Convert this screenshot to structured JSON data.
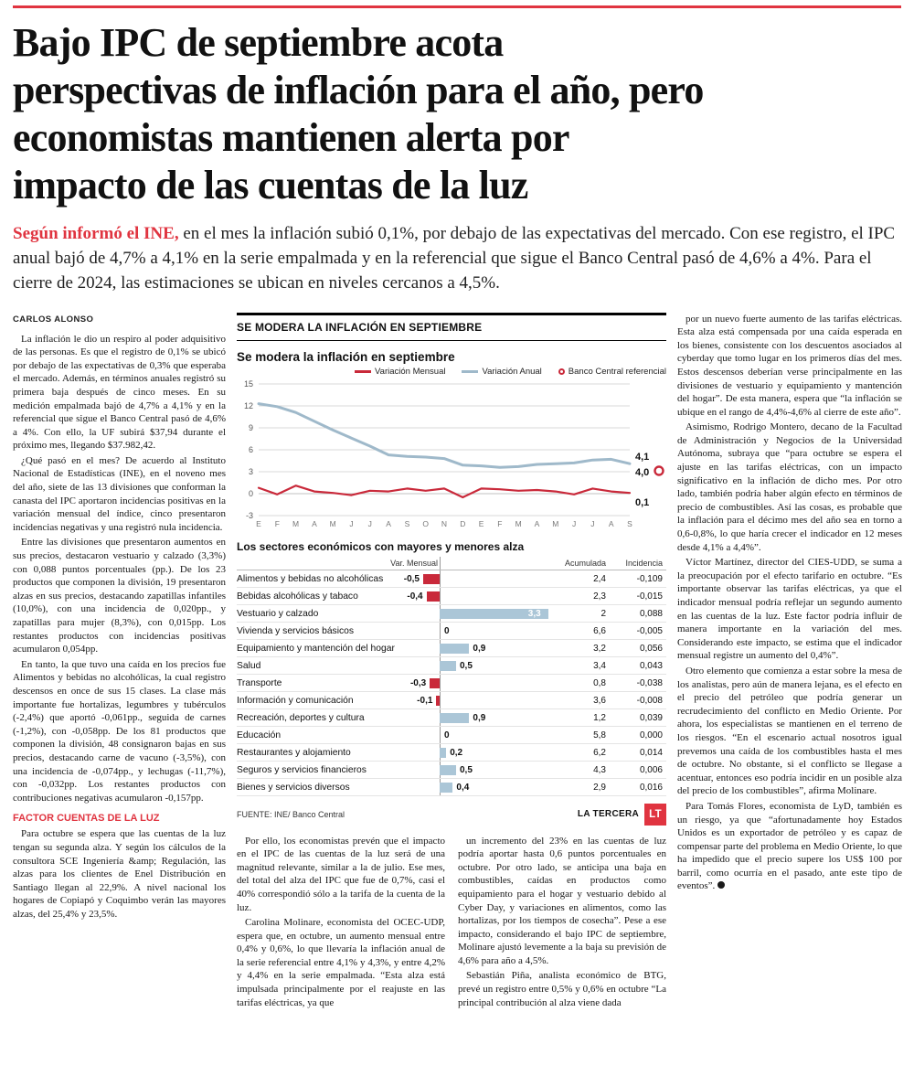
{
  "colors": {
    "accent": "#e03440",
    "chart_red": "#c9293a",
    "chart_blue": "#9fb9ca",
    "bar_blue": "#abc6d7",
    "grid": "#d9d9d9"
  },
  "page": {
    "headline": "Bajo IPC de septiembre acota\nperspectivas de inflación para el año, pero\neconomistas mantienen alerta por\nimpacto de las cuentas de la luz",
    "lede_lead": "Según informó el INE,",
    "lede_rest": " en el mes la inflación subió 0,1%, por debajo de las expectativas del mercado. Con ese registro, el IPC anual bajó de 4,7% a 4,1% en la serie empalmada y en la referencial que sigue el Banco Central pasó de 4,6% a 4%. Para el cierre de 2024, las estimaciones se ubican en niveles cercanos a 4,5%.",
    "byline": "CARLOS ALONSO"
  },
  "article": {
    "col1": [
      "La inflación le dio un respiro al poder adquisitivo de las personas. Es que el registro de 0,1% se ubicó por debajo de las expectativas de 0,3% que esperaba el mercado. Además, en términos anuales registró su primera baja después de cinco meses. En su medición empalmada bajó de 4,7% a 4,1% y en la referencial que sigue el Banco Central pasó de 4,6% a 4%. Con ello, la UF subirá $37,94 durante el próximo mes, llegando $37.982,42.",
      "¿Qué pasó en el mes? De acuerdo al Instituto Nacional de Estadísticas (INE), en el noveno mes del año, siete de las 13 divisiones que conforman la canasta del IPC aportaron incidencias positivas en la variación mensual del índice, cinco presentaron incidencias negativas y una registró nula incidencia.",
      "Entre las divisiones que presentaron aumentos en sus precios, destacaron vestuario y calzado (3,3%) con 0,088 puntos porcentuales (pp.). De los 23 productos que componen la división, 19 presentaron alzas en sus precios, destacando zapatillas infantiles (10,0%), con una incidencia de 0,020pp., y zapatillas para mujer (8,3%), con 0,015pp. Los restantes productos con incidencias positivas acumularon 0,054pp.",
      "En tanto, la que tuvo una caída en los precios fue Alimentos y bebidas no alcohólicas, la cual registro descensos en once de sus 15 clases. La clase más importante fue hortalizas, legumbres y tubérculos (-2,4%) que aportó -0,061pp., seguida de carnes (-1,2%), con -0,058pp. De los 81 productos que componen la división, 48 consignaron bajas en sus precios, destacando carne de vacuno (-3,5%), con una incidencia de -0,074pp., y lechugas (-11,7%), con -0,032pp. Los restantes productos con contribuciones negativas acumularon -0,157pp."
    ],
    "col1_sub": "FACTOR CUENTAS DE LA LUZ",
    "col1b": [
      "Para octubre se espera que las cuentas de la luz tengan su segunda alza. Y según los cálculos de la consultora SCE Ingeniería &amp; Regulación, las alzas para los clientes de Enel Distribución en Santiago llegan al 22,9%. A nivel nacional los hogares de Copiapó y Coquimbo verán las mayores alzas, del 25,4% y 23,5%."
    ],
    "col2": [
      "Por ello, los economistas prevén que el impacto en el IPC de las cuentas de la luz será de una magnitud relevante, similar a la de julio. Ese mes, del total del alza del IPC que fue de 0,7%, casi el 40% correspondió sólo a la tarifa de la cuenta de la luz.",
      "Carolina Molinare, economista del OCEC-UDP, espera que, en octubre, un aumento mensual entre 0,4% y 0,6%, lo que llevaría la inflación anual de la serie referencial entre 4,1% y 4,3%, y entre 4,2% y 4,4% en la serie empalmada. “Esta alza está impulsada principalmente por el reajuste en las tarifas eléctricas, ya que"
    ],
    "col3": [
      "un incremento del 23% en las cuentas de luz podría aportar hasta 0,6 puntos porcentuales en octubre. Por otro lado, se anticipa una baja en combustibles, caídas en productos como equipamiento para el hogar y vestuario debido al Cyber Day, y variaciones en alimentos, como las hortalizas, por los tiempos de cosecha”. Pese a ese impacto, considerando el bajo IPC de septiembre, Molinare ajustó levemente a la baja su previsión de 4,6% para año a 4,5%.",
      "Sebastián Piña, analista económico de BTG, prevé un registro entre 0,5% y 0,6% en octubre “La principal contribución al alza viene dada"
    ],
    "col4": [
      "por un nuevo fuerte aumento de las tarifas eléctricas. Esta alza está compensada por una caída esperada en los bienes, consistente con los descuentos asociados al cyberday que tomo lugar en los primeros días del mes. Estos descensos deberían verse principalmente en las divisiones de vestuario y equipamiento y mantención del hogar”. De esta manera, espera que “la inflación se ubique en el rango de 4,4%-4,6% al cierre de este año”.",
      "Asimismo, Rodrigo Montero, decano de la Facultad de Administración y Negocios de la Universidad Autónoma, subraya que “para octubre se espera el ajuste en las tarifas eléctricas, con un impacto significativo en la inflación de dicho mes. Por otro lado, también podría haber algún efecto en términos de precio de combustibles. Así las cosas, es probable que la inflación para el décimo mes del año sea en torno a 0,6-0,8%, lo que haría crecer el indicador en 12 meses desde 4,1% a 4,4%”.",
      "Víctor Martínez, director del CIES-UDD, se suma a la preocupación por el efecto tarifario en octubre. “Es importante observar las tarifas eléctricas, ya que el indicador mensual podría reflejar un segundo aumento en las cuentas de la luz. Este factor podría influir de manera importante en la variación del mes. Considerando este impacto, se estima que el indicador mensual registre un aumento del 0,4%”.",
      "Otro elemento que comienza a estar sobre la mesa de los analistas, pero aún de manera lejana, es el efecto en el precio del petróleo que podría generar un recrudecimiento del conflicto en Medio Oriente. Por ahora, los especialistas se mantienen en el terreno de los riesgos. “En el escenario actual nosotros igual prevemos una caída de los combustibles hasta el mes de octubre. No obstante, si el conflicto se llegase a acentuar, entonces eso podría incidir en un posible alza del precio de los combustibles”, afirma Molinare.",
      "Para Tomás Flores, economista de LyD, también es un riesgo, ya que “afortunadamente hoy Estados Unidos es un exportador de petróleo y es capaz de compensar parte del problema en Medio Oriente, lo que ha impedido que el precio supere los US$ 100 por barril, como ocurría en el pasado, ante este tipo de eventos”."
    ]
  },
  "infographic": {
    "kicker": "SE MODERA LA INFLACIÓN EN SEPTIEMBRE",
    "chart_title": "Se modera la inflación en septiembre",
    "legend": [
      {
        "label": "Variación Mensual"
      },
      {
        "label": "Variación Anual"
      },
      {
        "label": "Banco Central referencial"
      }
    ],
    "sectors_title": "Los sectores económicos con mayores y menores alza",
    "col_var": "Var. Mensual",
    "col_acum": "Acumulada",
    "col_incid": "Incidencia",
    "source": "FUENTE: INE/ Banco Central",
    "credit": "LA TERCERA",
    "logo": "LT"
  },
  "chart_data": [
    {
      "type": "line",
      "title": "Se modera la inflación en septiembre",
      "x": [
        "E",
        "F",
        "M",
        "A",
        "M",
        "J",
        "J",
        "A",
        "S",
        "O",
        "N",
        "D",
        "E",
        "F",
        "M",
        "A",
        "M",
        "J",
        "J",
        "A",
        "S"
      ],
      "yticks": [
        15,
        12,
        9,
        6,
        3,
        0,
        -3
      ],
      "ylim": [
        -3,
        15
      ],
      "grid": true,
      "legend_position": "top-right",
      "series": [
        {
          "name": "Variación Mensual",
          "values": [
            0.8,
            -0.1,
            1.1,
            0.3,
            0.1,
            -0.2,
            0.4,
            0.3,
            0.7,
            0.4,
            0.7,
            -0.5,
            0.7,
            0.6,
            0.4,
            0.5,
            0.3,
            -0.1,
            0.7,
            0.3,
            0.1
          ],
          "end_label": "0,1"
        },
        {
          "name": "Variación Anual",
          "values": [
            12.3,
            11.9,
            11.1,
            9.9,
            8.7,
            7.6,
            6.5,
            5.3,
            5.1,
            5.0,
            4.8,
            3.9,
            3.8,
            3.6,
            3.7,
            4.0,
            4.1,
            4.2,
            4.6,
            4.7,
            4.1
          ],
          "end_label": "4,1"
        },
        {
          "name": "Banco Central referencial",
          "marker_value": 4.0,
          "end_label": "4,0"
        }
      ]
    },
    {
      "type": "bar",
      "title": "Los sectores económicos con mayores y menores alza",
      "columns": [
        "Var. Mensual",
        "Acumulada",
        "Incidencia"
      ],
      "rows": [
        {
          "label": "Alimentos y bebidas no alcohólicas",
          "var_mensual": -0.5,
          "display": "-0,5",
          "acumulada": "2,4",
          "incidencia": "-0,109"
        },
        {
          "label": "Bebidas alcohólicas y tabaco",
          "var_mensual": -0.4,
          "display": "-0,4",
          "acumulada": "2,3",
          "incidencia": "-0,015"
        },
        {
          "label": "Vestuario y calzado",
          "var_mensual": 3.3,
          "display": "3,3",
          "acumulada": "2",
          "incidencia": "0,088"
        },
        {
          "label": "Vivienda y servicios básicos",
          "var_mensual": 0,
          "display": "0",
          "acumulada": "6,6",
          "incidencia": "-0,005"
        },
        {
          "label": "Equipamiento y mantención del hogar",
          "var_mensual": 0.9,
          "display": "0,9",
          "acumulada": "3,2",
          "incidencia": "0,056"
        },
        {
          "label": "Salud",
          "var_mensual": 0.5,
          "display": "0,5",
          "acumulada": "3,4",
          "incidencia": "0,043"
        },
        {
          "label": "Transporte",
          "var_mensual": -0.3,
          "display": "-0,3",
          "acumulada": "0,8",
          "incidencia": "-0,038"
        },
        {
          "label": "Información y comunicación",
          "var_mensual": -0.1,
          "display": "-0,1",
          "acumulada": "3,6",
          "incidencia": "-0,008"
        },
        {
          "label": "Recreación, deportes y cultura",
          "var_mensual": 0.9,
          "display": "0,9",
          "acumulada": "1,2",
          "incidencia": "0,039"
        },
        {
          "label": "Educación",
          "var_mensual": 0,
          "display": "0",
          "acumulada": "5,8",
          "incidencia": "0,000"
        },
        {
          "label": "Restaurantes y alojamiento",
          "var_mensual": 0.2,
          "display": "0,2",
          "acumulada": "6,2",
          "incidencia": "0,014"
        },
        {
          "label": "Seguros y servicios financieros",
          "var_mensual": 0.5,
          "display": "0,5",
          "acumulada": "4,3",
          "incidencia": "0,006"
        },
        {
          "label": "Bienes y servicios diversos",
          "var_mensual": 0.4,
          "display": "0,4",
          "acumulada": "2,9",
          "incidencia": "0,016"
        }
      ]
    }
  ]
}
